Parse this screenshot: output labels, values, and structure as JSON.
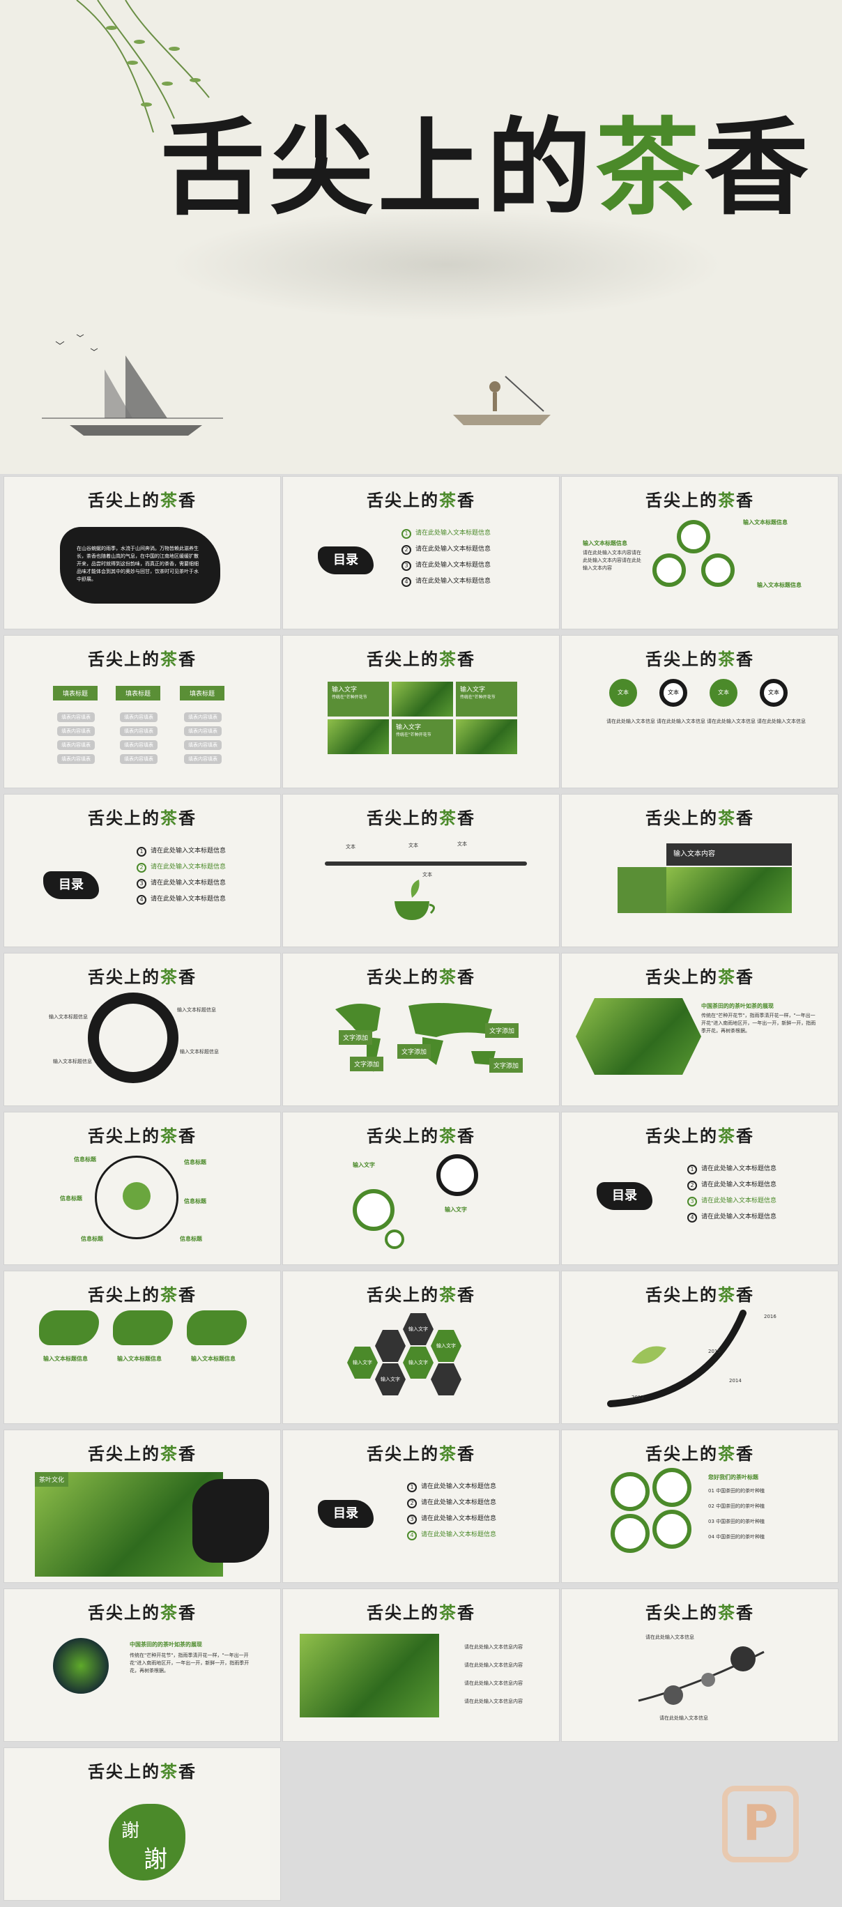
{
  "title": {
    "part1": "舌尖上的",
    "part2": "茶",
    "part3": "香"
  },
  "logo": {
    "a": "舌尖上的",
    "b": "茶",
    "c": "香"
  },
  "slide2": {
    "body": "在山谷蜿蜒的雨季，水流于山间奔淌。万物皆赖此滋养生长，茶香也随着山岚的气息，在中国的江南地区缓缓扩散开来，品尝时就得到这份韵味，而真正的茶香，需要细细品味才能体会到其中的奥妙与回甘，饮茶时可见茶叶于水中舒展。"
  },
  "menu": {
    "title": "目录",
    "items": [
      "请在此处输入文本标题信息",
      "请在此处输入文本标题信息",
      "请在此处输入文本标题信息",
      "请在此处输入文本标题信息"
    ]
  },
  "slide4": {
    "left_title": "输入文本标题信息",
    "right_title": "输入文本标题信息",
    "right_title2": "输入文本标题信息",
    "body": "请在此处输入文本内容请在此处输入文本内容请在此处输入文本内容"
  },
  "slide5": {
    "tabs": [
      "填表标题",
      "填表标题",
      "填表标题"
    ],
    "rows": [
      "填表内容填表",
      "填表内容填表",
      "填表内容填表",
      "填表内容填表"
    ]
  },
  "slide6": {
    "input": "输入文字",
    "desc": "传统在\"芒种开花节"
  },
  "slide7": {
    "rings": [
      "文本",
      "文本",
      "文本",
      "文本"
    ],
    "line": "请在此处输入文本信息"
  },
  "slide9": {
    "labels": [
      "文本",
      "文本",
      "文本",
      "文本"
    ]
  },
  "slide10": {
    "content": "输入文本内容"
  },
  "slide11": {
    "label": "输入文本标题信息"
  },
  "slide12": {
    "boxes": [
      "文字添加",
      "文字添加",
      "文字添加",
      "文字添加",
      "文字添加"
    ]
  },
  "slide13": {
    "title": "中国茶田的的茶叶如茶的展现",
    "body": "传统在\"芒种开花节\"，指雨季清开花一样，\"一年出一开花\"进入南雨地区开，一年出一开，新鲜一开，指雨季开花，再树茶根据。"
  },
  "slide14": {
    "labels": [
      "信息标题",
      "信息标题",
      "信息标题",
      "信息标题",
      "信息标题",
      "信息标题"
    ]
  },
  "slide15": {
    "a": "输入文字",
    "b": "输入文字"
  },
  "slide17": {
    "title": "输入文本标题信息"
  },
  "slide18": {
    "hexes": [
      "输入文字",
      "输入文字",
      "输入文字",
      "输入文字",
      "输入文字"
    ]
  },
  "slide19": {
    "years": [
      "2016",
      "2015",
      "2014",
      "2013"
    ]
  },
  "slide20": {
    "tag": "茶叶文化"
  },
  "slide22": {
    "title": "您好我们的茶叶标题",
    "items": [
      "01 中国茶田的的茶叶种植",
      "02 中国茶田的的茶叶种植",
      "03 中国茶田的的茶叶种植",
      "04 中国茶田的的茶叶种植"
    ]
  },
  "slide23": {
    "title": "中国茶田的的茶叶如茶的展现"
  },
  "slide24": {
    "items": [
      "请在此处输入文本信息内容",
      "请在此处输入文本信息内容",
      "请在此处输入文本信息内容",
      "请在此处输入文本信息内容"
    ]
  },
  "slide25": {
    "a": "请在此处输入文本信息",
    "b": "请在此处输入文本信息"
  },
  "slide26": {
    "thanks1": "謝",
    "thanks2": "謝"
  },
  "watermark": "P"
}
